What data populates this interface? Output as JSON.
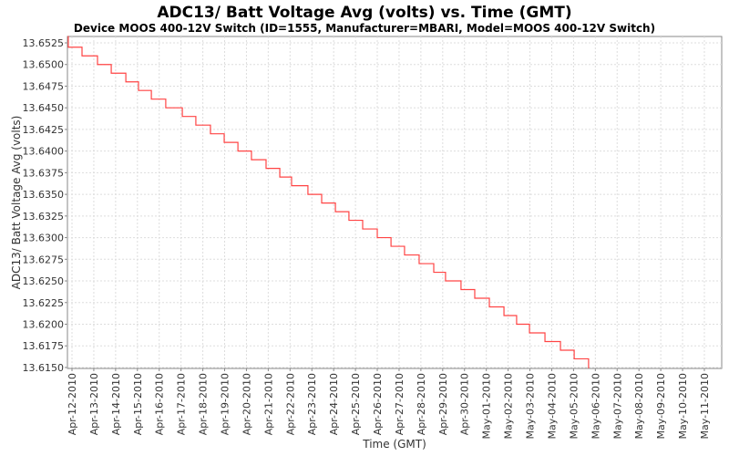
{
  "chart_data": {
    "type": "line",
    "step": true,
    "title": "ADC13/ Batt Voltage Avg (volts) vs. Time (GMT)",
    "subtitle": "Device MOOS 400-12V Switch (ID=1555, Manufacturer=MBARI, Model=MOOS 400-12V Switch)",
    "xlabel": "Time (GMT)",
    "ylabel": "ADC13/ Batt Voltage Avg (volts)",
    "x_units": "days since Apr-12-2010 00:00 GMT",
    "xlim": [
      -0.2,
      29.8
    ],
    "ylim": [
      13.6149,
      13.6533
    ],
    "grid": true,
    "color": "#ff4444",
    "x_tick_labels": [
      "Apr-12-2010",
      "Apr-13-2010",
      "Apr-14-2010",
      "Apr-15-2010",
      "Apr-16-2010",
      "Apr-17-2010",
      "Apr-18-2010",
      "Apr-19-2010",
      "Apr-20-2010",
      "Apr-21-2010",
      "Apr-22-2010",
      "Apr-23-2010",
      "Apr-24-2010",
      "Apr-25-2010",
      "Apr-26-2010",
      "Apr-27-2010",
      "Apr-28-2010",
      "Apr-29-2010",
      "Apr-30-2010",
      "May-01-2010",
      "May-02-2010",
      "May-03-2010",
      "May-04-2010",
      "May-05-2010",
      "May-06-2010",
      "May-07-2010",
      "May-08-2010",
      "May-09-2010",
      "May-10-2010",
      "May-11-2010"
    ],
    "y_ticks": [
      "13.6525",
      "13.6500",
      "13.6475",
      "13.6450",
      "13.6425",
      "13.6400",
      "13.6375",
      "13.6350",
      "13.6325",
      "13.6300",
      "13.6275",
      "13.6250",
      "13.6225",
      "13.6200",
      "13.6175",
      "13.6150"
    ],
    "series": [
      {
        "name": "ADC13/ Batt Voltage Avg",
        "points": [
          [
            -0.17,
            13.6533
          ],
          [
            -0.17,
            13.652
          ],
          [
            0.46,
            13.651
          ],
          [
            1.17,
            13.65
          ],
          [
            1.8,
            13.649
          ],
          [
            2.47,
            13.648
          ],
          [
            3.05,
            13.647
          ],
          [
            3.64,
            13.646
          ],
          [
            4.3,
            13.645
          ],
          [
            5.06,
            13.644
          ],
          [
            5.68,
            13.643
          ],
          [
            6.35,
            13.642
          ],
          [
            6.98,
            13.641
          ],
          [
            7.61,
            13.64
          ],
          [
            8.23,
            13.639
          ],
          [
            8.9,
            13.638
          ],
          [
            9.53,
            13.637
          ],
          [
            10.07,
            13.636
          ],
          [
            10.82,
            13.635
          ],
          [
            11.45,
            13.634
          ],
          [
            12.08,
            13.633
          ],
          [
            12.7,
            13.632
          ],
          [
            13.33,
            13.631
          ],
          [
            14.0,
            13.63
          ],
          [
            14.63,
            13.629
          ],
          [
            15.25,
            13.628
          ],
          [
            15.92,
            13.627
          ],
          [
            16.59,
            13.626
          ],
          [
            17.13,
            13.625
          ],
          [
            17.84,
            13.624
          ],
          [
            18.47,
            13.623
          ],
          [
            19.14,
            13.622
          ],
          [
            19.81,
            13.621
          ],
          [
            20.39,
            13.62
          ],
          [
            20.98,
            13.619
          ],
          [
            21.69,
            13.618
          ],
          [
            22.4,
            13.617
          ],
          [
            23.03,
            13.616
          ],
          [
            23.69,
            13.6149
          ]
        ]
      }
    ]
  }
}
